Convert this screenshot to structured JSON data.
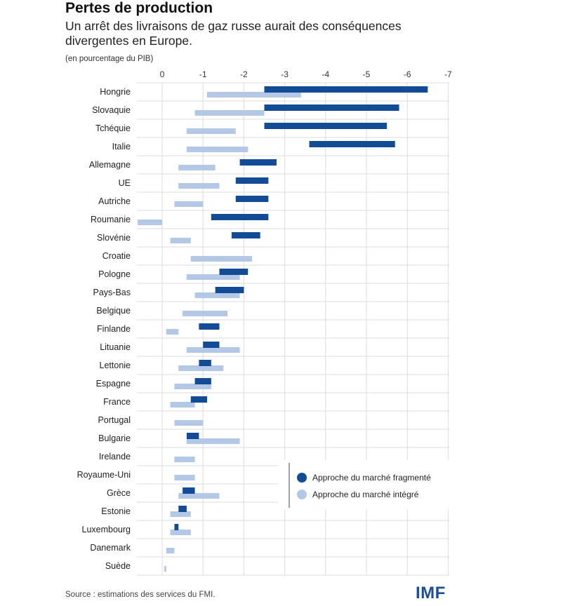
{
  "header": {
    "title": "Pertes de production",
    "subtitle": "Un arrêt des livraisons de gaz russe aurait des conséquences divergentes en Europe.",
    "unit_note": "(en pourcentage du PIB)"
  },
  "footer": {
    "source": "Source : estimations des services du FMI.",
    "logo_text": "IMF"
  },
  "colors": {
    "fragmented": "#124b96",
    "integrated": "#b3c7e6",
    "grid": "#dcdcdc"
  },
  "chart_data": {
    "type": "bar",
    "orientation": "horizontal",
    "xlim": [
      0,
      -7
    ],
    "xticks": [
      "0",
      "-1",
      "-2",
      "-3",
      "-4",
      "-5",
      "-6",
      "-7"
    ],
    "grid": true,
    "legend_position": "bottom-right",
    "categories": [
      "Hongrie",
      "Slovaquie",
      "Tchéquie",
      "Italie",
      "Allemagne",
      "UE",
      "Autriche",
      "Roumanie",
      "Slovénie",
      "Croatie",
      "Pologne",
      "Pays-Bas",
      "Belgique",
      "Finlande",
      "Lituanie",
      "Lettonie",
      "Espagne",
      "France",
      "Portugal",
      "Bulgarie",
      "Irelande",
      "Royaume-Uni",
      "Grèce",
      "Estonie",
      "Luxembourg",
      "Danemark",
      "Suède"
    ],
    "series": [
      {
        "name": "Approche du marché fragmenté",
        "ranges": [
          [
            -2.5,
            -6.5
          ],
          [
            -2.5,
            -5.8
          ],
          [
            -2.5,
            -5.5
          ],
          [
            -3.6,
            -5.7
          ],
          [
            -1.9,
            -2.8
          ],
          [
            -1.8,
            -2.6
          ],
          [
            -1.8,
            -2.6
          ],
          [
            -1.2,
            -2.6
          ],
          [
            -1.7,
            -2.4
          ],
          null,
          [
            -1.4,
            -2.1
          ],
          [
            -1.3,
            -2.0
          ],
          null,
          [
            -0.9,
            -1.4
          ],
          [
            -1.0,
            -1.4
          ],
          [
            -0.9,
            -1.2
          ],
          [
            -0.8,
            -1.2
          ],
          [
            -0.7,
            -1.1
          ],
          null,
          [
            -0.6,
            -0.9
          ],
          null,
          null,
          [
            -0.5,
            -0.8
          ],
          [
            -0.4,
            -0.6
          ],
          [
            -0.3,
            -0.4
          ],
          null,
          null
        ]
      },
      {
        "name": "Approche du marché intégré",
        "ranges": [
          [
            -1.1,
            -3.4
          ],
          [
            -0.8,
            -2.5
          ],
          [
            -0.6,
            -1.8
          ],
          [
            -0.6,
            -2.1
          ],
          [
            -0.4,
            -1.3
          ],
          [
            -0.4,
            -1.4
          ],
          [
            -0.3,
            -1.0
          ],
          [
            0.6,
            0.0
          ],
          [
            -0.2,
            -0.7
          ],
          [
            -0.7,
            -2.2
          ],
          [
            -0.6,
            -1.9
          ],
          [
            -0.8,
            -1.9
          ],
          [
            -0.5,
            -1.6
          ],
          [
            -0.1,
            -0.4
          ],
          [
            -0.6,
            -1.9
          ],
          [
            -0.4,
            -1.5
          ],
          [
            -0.3,
            -1.2
          ],
          [
            -0.2,
            -0.8
          ],
          [
            -0.3,
            -1.0
          ],
          [
            -0.6,
            -1.9
          ],
          [
            -0.3,
            -0.8
          ],
          [
            -0.3,
            -0.8
          ],
          [
            -0.4,
            -1.4
          ],
          [
            -0.2,
            -0.7
          ],
          [
            -0.2,
            -0.7
          ],
          [
            -0.1,
            -0.3
          ],
          [
            -0.05,
            -0.1
          ]
        ]
      }
    ]
  }
}
